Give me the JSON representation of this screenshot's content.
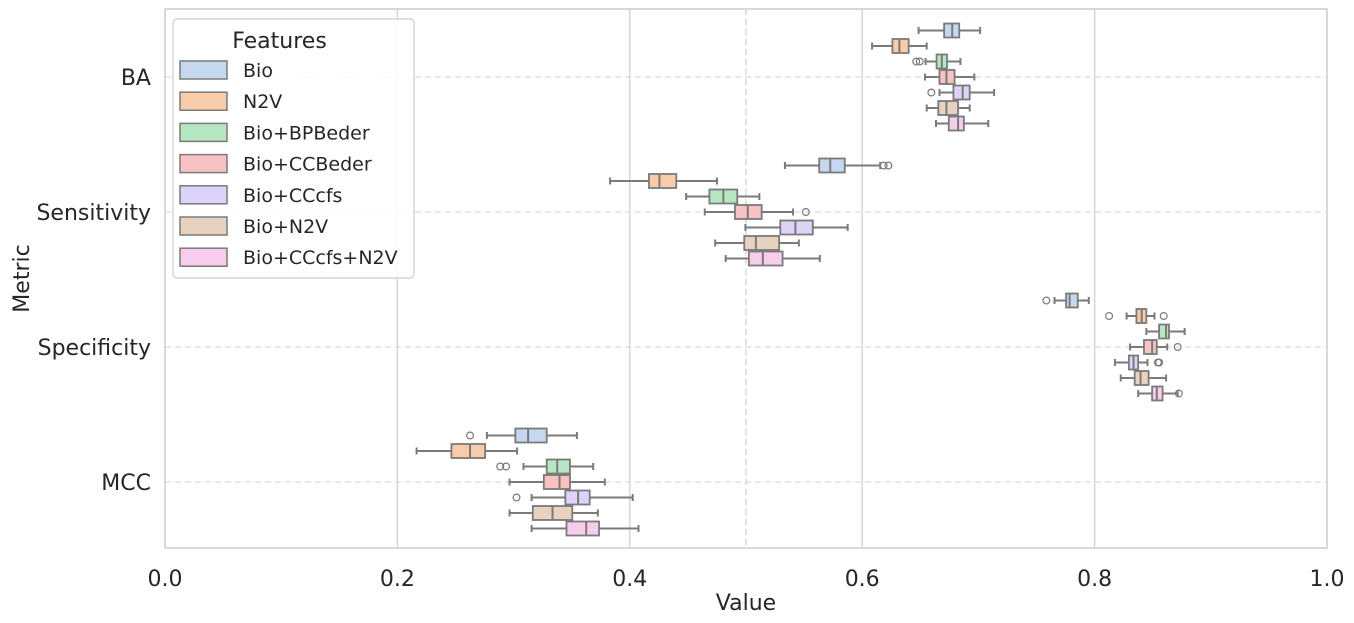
{
  "chart_data": {
    "type": "boxplot",
    "orientation": "horizontal",
    "xlabel": "Value",
    "ylabel": "Metric",
    "xlim": [
      0.0,
      1.0
    ],
    "xticks": [
      "0.0",
      "0.2",
      "0.4",
      "0.6",
      "0.8",
      "1.0"
    ],
    "categories": [
      "BA",
      "Sensitivity",
      "Specificity",
      "MCC"
    ],
    "legend": {
      "title": "Features",
      "placement": "top-left"
    },
    "grid": {
      "vertical_solid": [
        0.2,
        0.4,
        0.6,
        0.8
      ],
      "vertical_dashed": [
        0.5
      ],
      "horizontal_dashed_at_categories": true
    },
    "series": [
      {
        "name": "Bio",
        "color": "#c6d7f0",
        "boxes": [
          {
            "metric": "BA",
            "whislo": 0.6485,
            "q1": 0.6705,
            "med": 0.6775,
            "q3": 0.6835,
            "whishi": 0.7015,
            "fliers": []
          },
          {
            "metric": "Sensitivity",
            "whislo": 0.5335,
            "q1": 0.563,
            "med": 0.5725,
            "q3": 0.585,
            "whishi": 0.6155,
            "fliers": [
              0.6185,
              0.6225
            ]
          },
          {
            "metric": "Specificity",
            "whislo": 0.7655,
            "q1": 0.7755,
            "med": 0.7785,
            "q3": 0.7855,
            "whishi": 0.795,
            "fliers": [
              0.7585
            ]
          },
          {
            "metric": "MCC",
            "whislo": 0.277,
            "q1": 0.3015,
            "med": 0.3125,
            "q3": 0.3285,
            "whishi": 0.3545,
            "fliers": [
              0.2625
            ]
          }
        ]
      },
      {
        "name": "N2V",
        "color": "#f8cba9",
        "boxes": [
          {
            "metric": "BA",
            "whislo": 0.6085,
            "q1": 0.626,
            "med": 0.632,
            "q3": 0.64,
            "whishi": 0.6555,
            "fliers": []
          },
          {
            "metric": "Sensitivity",
            "whislo": 0.383,
            "q1": 0.4165,
            "med": 0.4255,
            "q3": 0.44,
            "whishi": 0.475,
            "fliers": []
          },
          {
            "metric": "Specificity",
            "whislo": 0.8275,
            "q1": 0.836,
            "med": 0.8405,
            "q3": 0.8445,
            "whishi": 0.8515,
            "fliers": [
              0.8125,
              0.8595
            ]
          },
          {
            "metric": "MCC",
            "whislo": 0.2165,
            "q1": 0.2465,
            "med": 0.2625,
            "q3": 0.2755,
            "whishi": 0.303,
            "fliers": []
          }
        ]
      },
      {
        "name": "Bio+BPBeder",
        "color": "#b7e7c2",
        "boxes": [
          {
            "metric": "BA",
            "whislo": 0.6545,
            "q1": 0.664,
            "med": 0.6685,
            "q3": 0.673,
            "whishi": 0.6845,
            "fliers": [
              0.6465,
              0.6495
            ]
          },
          {
            "metric": "Sensitivity",
            "whislo": 0.4485,
            "q1": 0.4685,
            "med": 0.4805,
            "q3": 0.4925,
            "whishi": 0.5115,
            "fliers": []
          },
          {
            "metric": "Specificity",
            "whislo": 0.8445,
            "q1": 0.8555,
            "med": 0.8615,
            "q3": 0.864,
            "whishi": 0.8775,
            "fliers": []
          },
          {
            "metric": "MCC",
            "whislo": 0.3085,
            "q1": 0.3285,
            "med": 0.3375,
            "q3": 0.3485,
            "whishi": 0.3685,
            "fliers": [
              0.2885,
              0.2935
            ]
          }
        ]
      },
      {
        "name": "Bio+CCBeder",
        "color": "#f8c2c2",
        "boxes": [
          {
            "metric": "BA",
            "whislo": 0.654,
            "q1": 0.6665,
            "med": 0.6725,
            "q3": 0.6795,
            "whishi": 0.6965,
            "fliers": []
          },
          {
            "metric": "Sensitivity",
            "whislo": 0.4645,
            "q1": 0.4905,
            "med": 0.5015,
            "q3": 0.5135,
            "whishi": 0.5405,
            "fliers": [
              0.5515
            ]
          },
          {
            "metric": "Specificity",
            "whislo": 0.8305,
            "q1": 0.8425,
            "med": 0.8495,
            "q3": 0.8535,
            "whishi": 0.8625,
            "fliers": [
              0.8715
            ]
          },
          {
            "metric": "MCC",
            "whislo": 0.2965,
            "q1": 0.326,
            "med": 0.3395,
            "q3": 0.3485,
            "whishi": 0.3785,
            "fliers": []
          }
        ]
      },
      {
        "name": "Bio+CCcfs",
        "color": "#ddd2f7",
        "boxes": [
          {
            "metric": "BA",
            "whislo": 0.6665,
            "q1": 0.6785,
            "med": 0.6865,
            "q3": 0.6925,
            "whishi": 0.7135,
            "fliers": [
              0.6595
            ]
          },
          {
            "metric": "Sensitivity",
            "whislo": 0.4995,
            "q1": 0.5295,
            "med": 0.5425,
            "q3": 0.5575,
            "whishi": 0.5875,
            "fliers": []
          },
          {
            "metric": "Specificity",
            "whislo": 0.8175,
            "q1": 0.8295,
            "med": 0.8335,
            "q3": 0.8375,
            "whishi": 0.8455,
            "fliers": [
              0.8545,
              0.8555
            ]
          },
          {
            "metric": "MCC",
            "whislo": 0.3155,
            "q1": 0.3445,
            "med": 0.3555,
            "q3": 0.3655,
            "whishi": 0.4025,
            "fliers": [
              0.3025
            ]
          }
        ]
      },
      {
        "name": "Bio+N2V",
        "color": "#e7d2bf",
        "boxes": [
          {
            "metric": "BA",
            "whislo": 0.6555,
            "q1": 0.6655,
            "med": 0.6725,
            "q3": 0.6825,
            "whishi": 0.6925,
            "fliers": []
          },
          {
            "metric": "Sensitivity",
            "whislo": 0.4735,
            "q1": 0.4985,
            "med": 0.5085,
            "q3": 0.5285,
            "whishi": 0.5455,
            "fliers": []
          },
          {
            "metric": "Specificity",
            "whislo": 0.8225,
            "q1": 0.8345,
            "med": 0.8395,
            "q3": 0.8465,
            "whishi": 0.8615,
            "fliers": []
          },
          {
            "metric": "MCC",
            "whislo": 0.2965,
            "q1": 0.3165,
            "med": 0.3335,
            "q3": 0.3505,
            "whishi": 0.3725,
            "fliers": []
          }
        ]
      },
      {
        "name": "Bio+CCcfs+N2V",
        "color": "#f6cdea",
        "boxes": [
          {
            "metric": "BA",
            "whislo": 0.6635,
            "q1": 0.6745,
            "med": 0.6825,
            "q3": 0.6875,
            "whishi": 0.7085,
            "fliers": []
          },
          {
            "metric": "Sensitivity",
            "whislo": 0.4825,
            "q1": 0.5025,
            "med": 0.5145,
            "q3": 0.5315,
            "whishi": 0.5635,
            "fliers": []
          },
          {
            "metric": "Specificity",
            "whislo": 0.8375,
            "q1": 0.8495,
            "med": 0.8535,
            "q3": 0.8585,
            "whishi": 0.8715,
            "fliers": [
              0.8725
            ]
          },
          {
            "metric": "MCC",
            "whislo": 0.3155,
            "q1": 0.3455,
            "med": 0.3625,
            "q3": 0.3735,
            "whishi": 0.4075,
            "fliers": []
          }
        ]
      }
    ]
  }
}
